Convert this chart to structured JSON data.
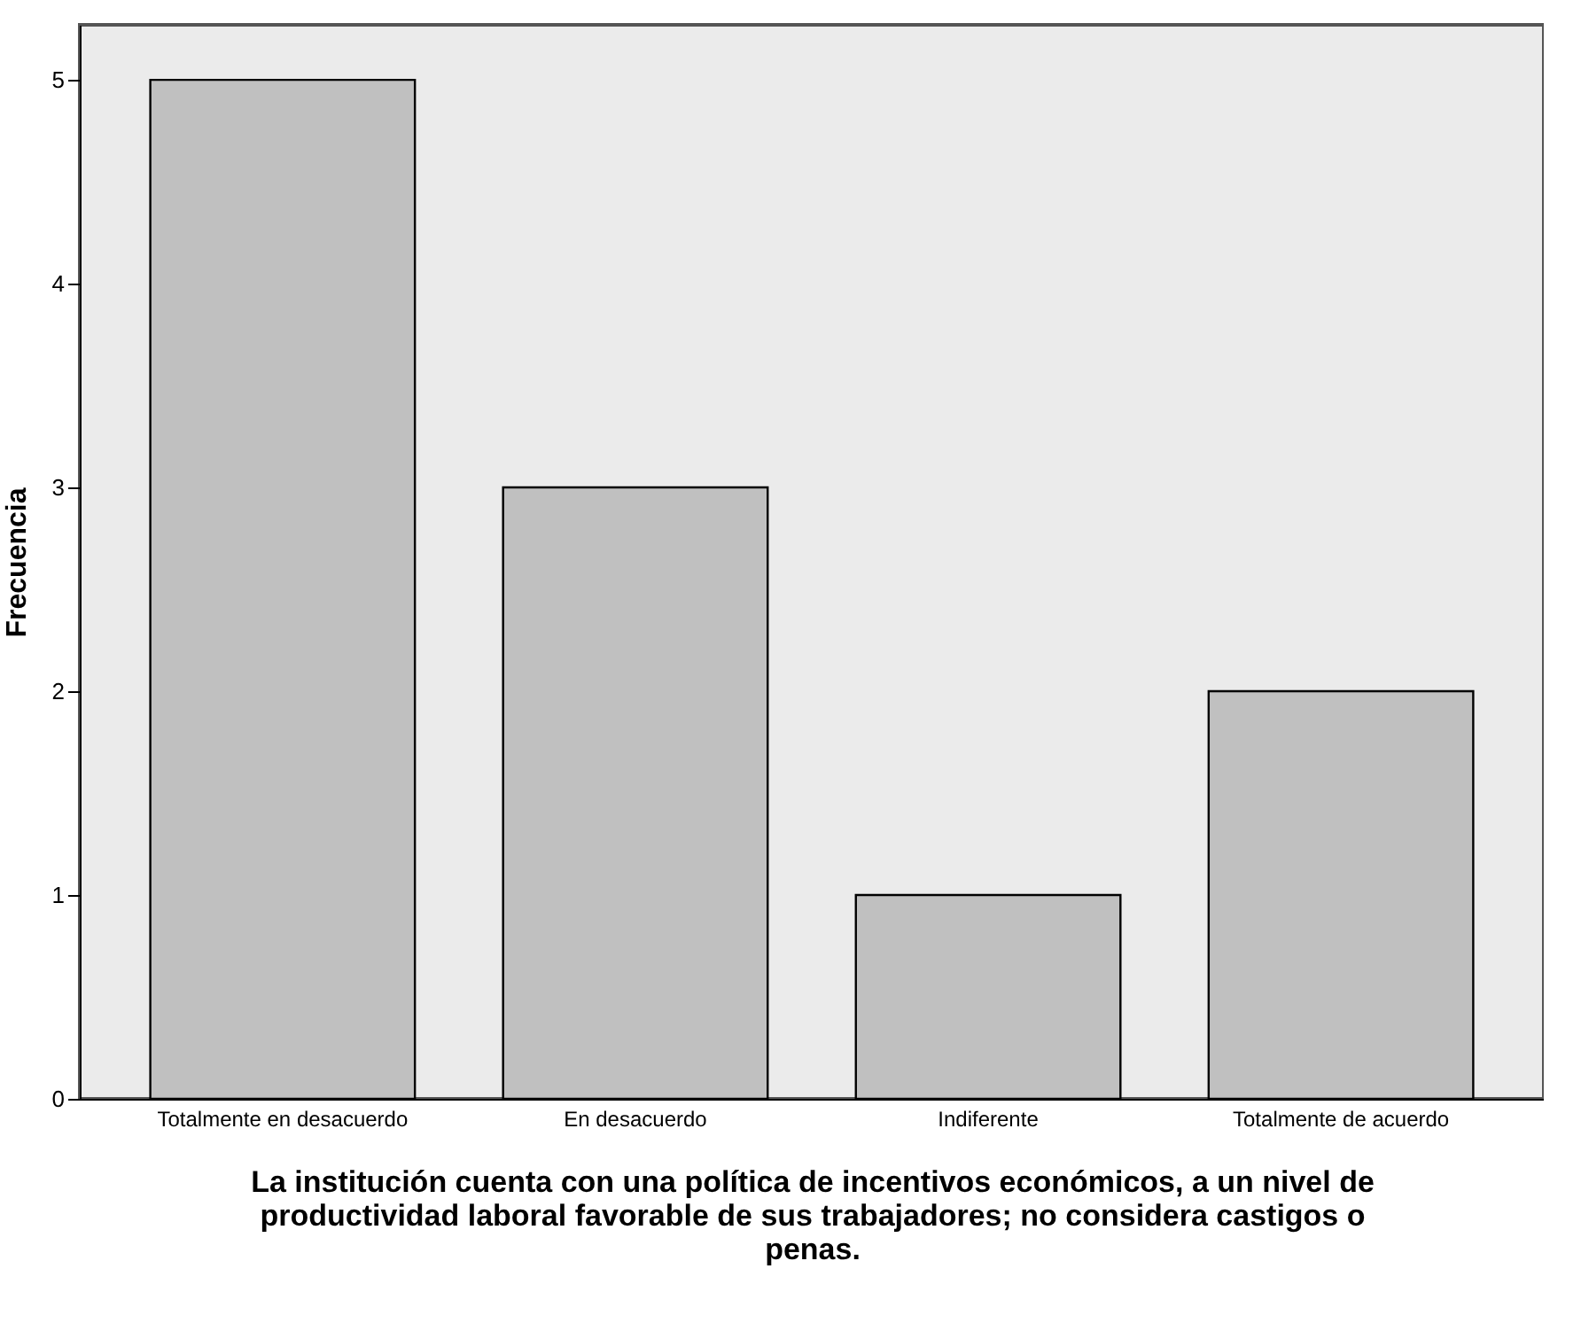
{
  "chart_data": {
    "type": "bar",
    "xlabel": "La institución cuenta con una política de incentivos económicos, a un nivel de productividad laboral favorable de sus trabajadores; no considera castigos o penas.",
    "ylabel": "Frecuencia",
    "categories": [
      "Totalmente en desacuerdo",
      "En desacuerdo",
      "Indiferente",
      "Totalmente de acuerdo"
    ],
    "values": [
      5,
      3,
      1,
      2
    ],
    "color": "#c0c0c0",
    "ylim": [
      0,
      5.27
    ],
    "yticks": [
      0,
      1,
      2,
      3,
      4,
      5
    ],
    "grid": false
  }
}
